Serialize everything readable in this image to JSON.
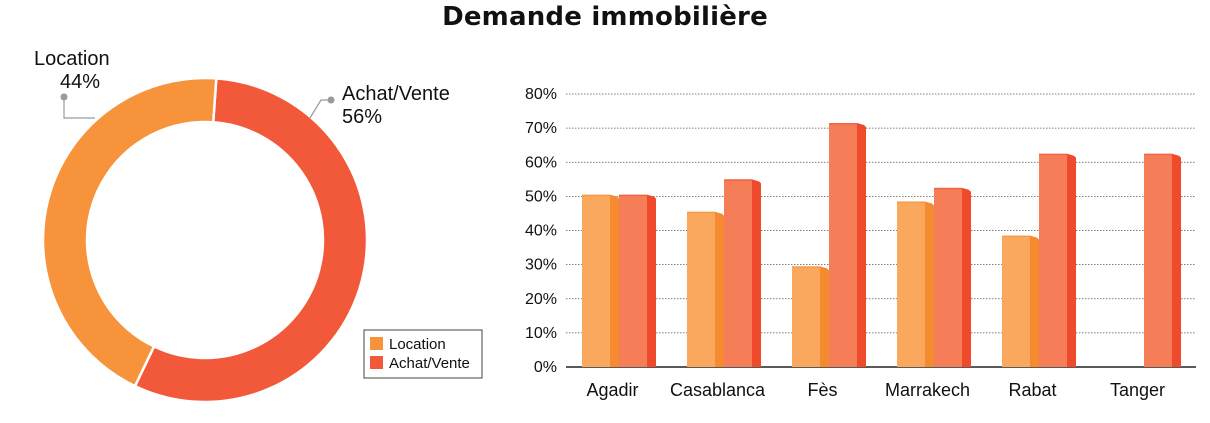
{
  "title": "Demande immobilière",
  "colors": {
    "location": "#F7943B",
    "achat_vente": "#F2583A",
    "bar_location_front": "#F9A85E",
    "bar_location_side": "#F68A2E",
    "bar_achat_front": "#F57E58",
    "bar_achat_side": "#F04A2C"
  },
  "chart_data": [
    {
      "type": "pie",
      "style": "donut",
      "slices": [
        {
          "label": "Location",
          "value": 44,
          "display": "44%"
        },
        {
          "label": "Achat/Vente",
          "value": 56,
          "display": "56%"
        }
      ],
      "legend": {
        "position": "bottom-right",
        "entries": [
          "Location",
          "Achat/Vente"
        ]
      }
    },
    {
      "type": "bar",
      "categories": [
        "Agadir",
        "Casablanca",
        "Fès",
        "Marrakech",
        "Rabat",
        "Tanger"
      ],
      "series": [
        {
          "name": "Location",
          "values": [
            50.5,
            45.5,
            29.5,
            48.5,
            38.5,
            0
          ]
        },
        {
          "name": "Achat/Vente",
          "values": [
            50.5,
            55,
            71.5,
            52.5,
            62.5,
            62.5
          ]
        }
      ],
      "ylim": [
        0,
        80
      ],
      "yticks": [
        "0%",
        "10%",
        "20%",
        "30%",
        "40%",
        "50%",
        "60%",
        "70%",
        "80%"
      ],
      "grid": true
    }
  ]
}
